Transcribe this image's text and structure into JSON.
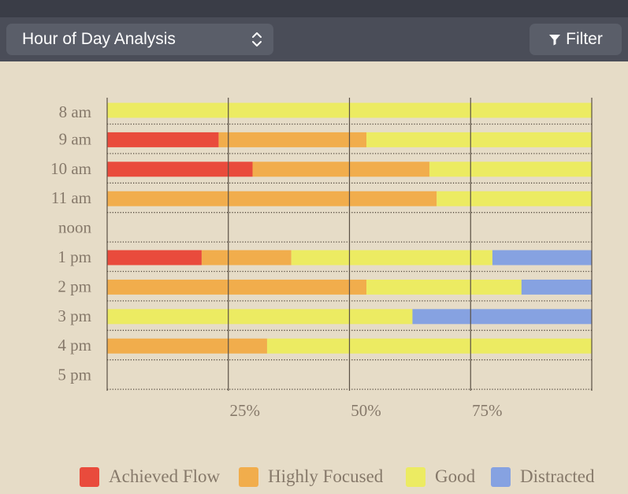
{
  "toolbar": {
    "view_select": {
      "label": "Hour of Day Analysis",
      "icon": "chevron-updown-icon"
    },
    "filter_button": {
      "label": "Filter",
      "icon": "filter-icon"
    }
  },
  "colors": {
    "background": "#e6dcc7",
    "toolbar": "#4a4d58",
    "control": "#5a5e69",
    "grid": "#5a5045",
    "text": "#86796a"
  },
  "chart_data": {
    "type": "bar",
    "orientation": "horizontal",
    "stacked": true,
    "normalized": true,
    "title": "",
    "xlabel": "",
    "ylabel": "",
    "xlim": [
      0,
      100
    ],
    "x_ticks": [
      25,
      50,
      75
    ],
    "x_tick_labels": [
      "25%",
      "50%",
      "75%"
    ],
    "grid": "vertical lines at 0, 25, 50, 75, 100; dotted row separators",
    "legend_position": "bottom-right",
    "categories": [
      "8 am",
      "9 am",
      "10 am",
      "11 am",
      "noon",
      "1 pm",
      "2 pm",
      "3 pm",
      "4 pm",
      "5 pm"
    ],
    "series": [
      {
        "name": "Achieved Flow",
        "color": "#e94b3c",
        "values": [
          0,
          23,
          30,
          0,
          0,
          19.5,
          0,
          0,
          0,
          0
        ]
      },
      {
        "name": "Highly Focused",
        "color": "#f1ad4c",
        "values": [
          0,
          30.5,
          36.5,
          68,
          0,
          18.5,
          53.5,
          0,
          33,
          0
        ]
      },
      {
        "name": "Good",
        "color": "#eceb62",
        "values": [
          100,
          46.5,
          33.5,
          32,
          0,
          41.5,
          32,
          63,
          67,
          0
        ]
      },
      {
        "name": "Distracted",
        "color": "#86a2e1",
        "values": [
          0,
          0,
          0,
          0,
          0,
          20.5,
          14.5,
          37,
          0,
          0
        ]
      }
    ]
  }
}
